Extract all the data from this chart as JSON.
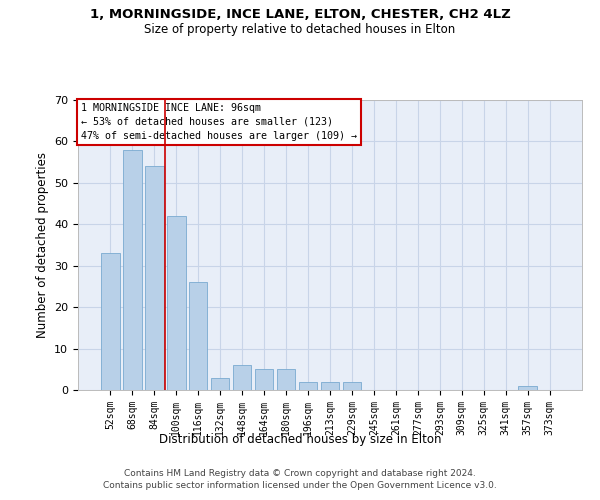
{
  "title1": "1, MORNINGSIDE, INCE LANE, ELTON, CHESTER, CH2 4LZ",
  "title2": "Size of property relative to detached houses in Elton",
  "xlabel": "Distribution of detached houses by size in Elton",
  "ylabel": "Number of detached properties",
  "categories": [
    "52sqm",
    "68sqm",
    "84sqm",
    "100sqm",
    "116sqm",
    "132sqm",
    "148sqm",
    "164sqm",
    "180sqm",
    "196sqm",
    "213sqm",
    "229sqm",
    "245sqm",
    "261sqm",
    "277sqm",
    "293sqm",
    "309sqm",
    "325sqm",
    "341sqm",
    "357sqm",
    "373sqm"
  ],
  "values": [
    33,
    58,
    54,
    42,
    26,
    3,
    6,
    5,
    5,
    2,
    2,
    2,
    0,
    0,
    0,
    0,
    0,
    0,
    0,
    1,
    0
  ],
  "bar_color": "#b8d0e8",
  "bar_edge_color": "#7aaad0",
  "vline_x": 2.5,
  "vline_color": "#cc0000",
  "annotation_lines": [
    "1 MORNINGSIDE INCE LANE: 96sqm",
    "← 53% of detached houses are smaller (123)",
    "47% of semi-detached houses are larger (109) →"
  ],
  "annotation_box_color": "#ffffff",
  "annotation_box_edge": "#cc0000",
  "ylim": [
    0,
    70
  ],
  "yticks": [
    0,
    10,
    20,
    30,
    40,
    50,
    60,
    70
  ],
  "grid_color": "#c8d4e8",
  "bg_color": "#e8eef8",
  "footer": "Contains HM Land Registry data © Crown copyright and database right 2024.\nContains public sector information licensed under the Open Government Licence v3.0."
}
